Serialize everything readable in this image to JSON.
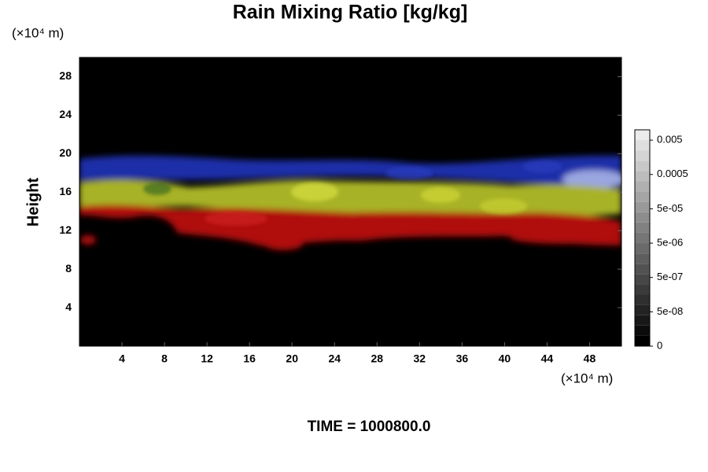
{
  "chart_data": {
    "type": "field",
    "title": "Rain Mixing Ratio [kg/kg]",
    "ylabel": "Height",
    "x_unit": "(×10⁴ m)",
    "y_unit": "(×10⁴ m)",
    "footer": "TIME = 1000800.0",
    "xlim": [
      0,
      51
    ],
    "ylim": [
      0,
      30
    ],
    "xticks": [
      4,
      8,
      12,
      16,
      20,
      24,
      28,
      32,
      36,
      40,
      44,
      48
    ],
    "yticks": [
      4,
      8,
      12,
      16,
      20,
      24,
      28
    ],
    "colorbar": {
      "scale": "log",
      "lim": [
        5e-09,
        0.01
      ],
      "ticks": [
        0,
        {
          "value": 5e-08,
          "label": "5e-08"
        },
        {
          "value": 5e-07,
          "label": "5e-07"
        },
        {
          "value": 5e-06,
          "label": "5e-06"
        },
        {
          "value": 5e-05,
          "label": "5e-05"
        },
        0.0005,
        0.005
      ]
    }
  }
}
